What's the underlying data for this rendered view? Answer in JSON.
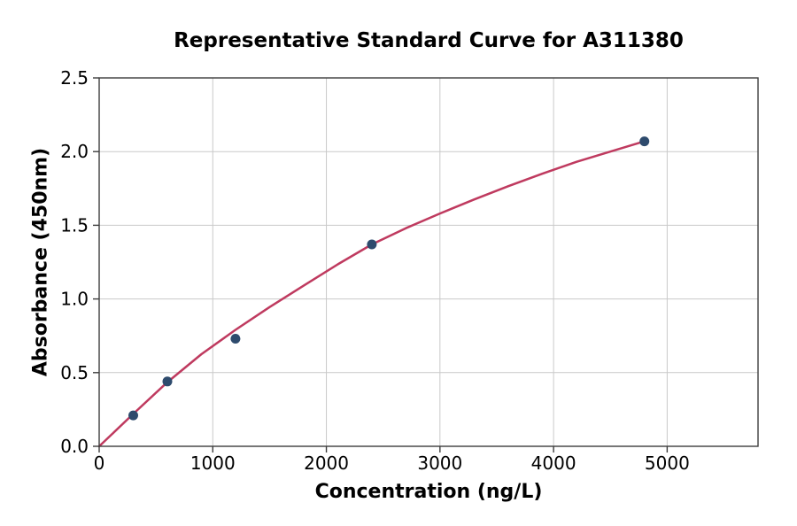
{
  "chart_data": {
    "type": "scatter",
    "title": "Representative Standard Curve for A311380",
    "xlabel": "Concentration (ng/L)",
    "ylabel": "Absorbance (450nm)",
    "xlim": [
      0,
      5800
    ],
    "ylim": [
      0,
      2.5
    ],
    "x_ticks": [
      0,
      1000,
      2000,
      3000,
      4000,
      5000
    ],
    "x_tick_labels": [
      "0",
      "1000",
      "2000",
      "3000",
      "4000",
      "5000"
    ],
    "y_ticks": [
      0,
      0.5,
      1.0,
      1.5,
      2.0,
      2.5
    ],
    "y_tick_labels": [
      "0.0",
      "0.5",
      "1.0",
      "1.5",
      "2.0",
      "2.5"
    ],
    "grid": true,
    "legend": "none",
    "points": [
      {
        "x": 300,
        "y": 0.21
      },
      {
        "x": 600,
        "y": 0.44
      },
      {
        "x": 1200,
        "y": 0.73
      },
      {
        "x": 2400,
        "y": 1.37
      },
      {
        "x": 4800,
        "y": 2.07
      }
    ],
    "fit_curve": [
      {
        "x": 0,
        "y": 0.0
      },
      {
        "x": 300,
        "y": 0.22
      },
      {
        "x": 600,
        "y": 0.435
      },
      {
        "x": 900,
        "y": 0.625
      },
      {
        "x": 1200,
        "y": 0.79
      },
      {
        "x": 1500,
        "y": 0.945
      },
      {
        "x": 1800,
        "y": 1.09
      },
      {
        "x": 2100,
        "y": 1.235
      },
      {
        "x": 2400,
        "y": 1.37
      },
      {
        "x": 2700,
        "y": 1.48
      },
      {
        "x": 3000,
        "y": 1.58
      },
      {
        "x": 3300,
        "y": 1.675
      },
      {
        "x": 3600,
        "y": 1.765
      },
      {
        "x": 3900,
        "y": 1.85
      },
      {
        "x": 4200,
        "y": 1.93
      },
      {
        "x": 4500,
        "y": 2.0
      },
      {
        "x": 4800,
        "y": 2.07
      }
    ],
    "colors": {
      "line": "#bf3a5f",
      "marker": "#2e4b6d",
      "grid": "#c9c9c9",
      "spine": "#3d3d3d",
      "text": "#000000",
      "background": "#ffffff"
    }
  }
}
